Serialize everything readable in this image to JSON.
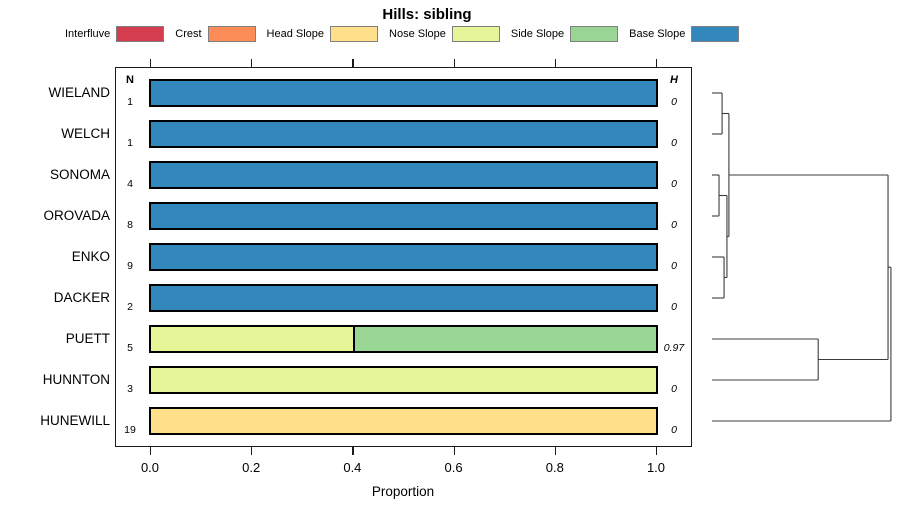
{
  "title": "Hills: sibling",
  "columns": {
    "n": "N",
    "h": "H"
  },
  "axis": {
    "label": "Proportion",
    "ticks": [
      "0.0",
      "0.2",
      "0.4",
      "0.6",
      "0.8",
      "1.0"
    ],
    "min": 0,
    "max": 1
  },
  "legend": [
    {
      "label": "Interfluve",
      "color": "#D53E4F"
    },
    {
      "label": "Crest",
      "color": "#FC8D59"
    },
    {
      "label": "Head Slope",
      "color": "#FEE08B"
    },
    {
      "label": "Nose Slope",
      "color": "#E6F598"
    },
    {
      "label": "Side Slope",
      "color": "#99D594"
    },
    {
      "label": "Base Slope",
      "color": "#3288BD"
    }
  ],
  "rows": [
    {
      "name": "WIELAND",
      "n": "1",
      "h": "0",
      "segments": [
        {
          "class": "Base Slope",
          "value": 1
        }
      ]
    },
    {
      "name": "WELCH",
      "n": "1",
      "h": "0",
      "segments": [
        {
          "class": "Base Slope",
          "value": 1
        }
      ]
    },
    {
      "name": "SONOMA",
      "n": "4",
      "h": "0",
      "segments": [
        {
          "class": "Base Slope",
          "value": 1
        }
      ]
    },
    {
      "name": "OROVADA",
      "n": "8",
      "h": "0",
      "segments": [
        {
          "class": "Base Slope",
          "value": 1
        }
      ]
    },
    {
      "name": "ENKO",
      "n": "9",
      "h": "0",
      "segments": [
        {
          "class": "Base Slope",
          "value": 1
        }
      ]
    },
    {
      "name": "DACKER",
      "n": "2",
      "h": "0",
      "segments": [
        {
          "class": "Base Slope",
          "value": 1
        }
      ]
    },
    {
      "name": "PUETT",
      "n": "5",
      "h": "0.97",
      "segments": [
        {
          "class": "Nose Slope",
          "value": 0.4
        },
        {
          "class": "Side Slope",
          "value": 0.6
        }
      ]
    },
    {
      "name": "HUNNTON",
      "n": "3",
      "h": "0",
      "segments": [
        {
          "class": "Nose Slope",
          "value": 1
        }
      ]
    },
    {
      "name": "HUNEWILL",
      "n": "19",
      "h": "0",
      "segments": [
        {
          "class": "Head Slope",
          "value": 1
        }
      ]
    }
  ],
  "dendrogram": {
    "merges": [
      {
        "a": "L0",
        "b": "L1",
        "h": 0.056
      },
      {
        "a": "L2",
        "b": "L3",
        "h": 0.039
      },
      {
        "a": "L4",
        "b": "L5",
        "h": 0.067
      },
      {
        "a": "M1",
        "b": "M2",
        "h": 0.083
      },
      {
        "a": "M0",
        "b": "M3",
        "h": 0.094
      },
      {
        "a": "L6",
        "b": "L7",
        "h": 0.59
      },
      {
        "a": "M4",
        "b": "M5",
        "h": 0.978
      },
      {
        "a": "M6",
        "b": "L8",
        "h": 0.994
      }
    ]
  },
  "chart_data": {
    "type": "bar",
    "stacked": true,
    "orientation": "horizontal",
    "title": "Hills: sibling",
    "xlabel": "Proportion",
    "xlim": [
      0,
      1
    ],
    "x_ticks": [
      0.0,
      0.2,
      0.4,
      0.6,
      0.8,
      1.0
    ],
    "categories": [
      "WIELAND",
      "WELCH",
      "SONOMA",
      "OROVADA",
      "ENKO",
      "DACKER",
      "PUETT",
      "HUNNTON",
      "HUNEWILL"
    ],
    "n_obs": [
      1,
      1,
      4,
      8,
      9,
      2,
      5,
      3,
      19
    ],
    "H_values": [
      0,
      0,
      0,
      0,
      0,
      0,
      0.97,
      0,
      0
    ],
    "series": [
      {
        "name": "Interfluve",
        "color": "#D53E4F",
        "values": [
          0,
          0,
          0,
          0,
          0,
          0,
          0,
          0,
          0
        ]
      },
      {
        "name": "Crest",
        "color": "#FC8D59",
        "values": [
          0,
          0,
          0,
          0,
          0,
          0,
          0,
          0,
          0
        ]
      },
      {
        "name": "Head Slope",
        "color": "#FEE08B",
        "values": [
          0,
          0,
          0,
          0,
          0,
          0,
          0,
          0,
          1
        ]
      },
      {
        "name": "Nose Slope",
        "color": "#E6F598",
        "values": [
          0,
          0,
          0,
          0,
          0,
          0,
          0.4,
          1,
          0
        ]
      },
      {
        "name": "Side Slope",
        "color": "#99D594",
        "values": [
          0,
          0,
          0,
          0,
          0,
          0,
          0.6,
          0,
          0
        ]
      },
      {
        "name": "Base Slope",
        "color": "#3288BD",
        "values": [
          1,
          1,
          1,
          1,
          1,
          1,
          0,
          0,
          0
        ]
      }
    ],
    "legend_position": "top",
    "grid": false,
    "right_panel": "dendrogram of hierarchical clustering, root near H = 1"
  }
}
